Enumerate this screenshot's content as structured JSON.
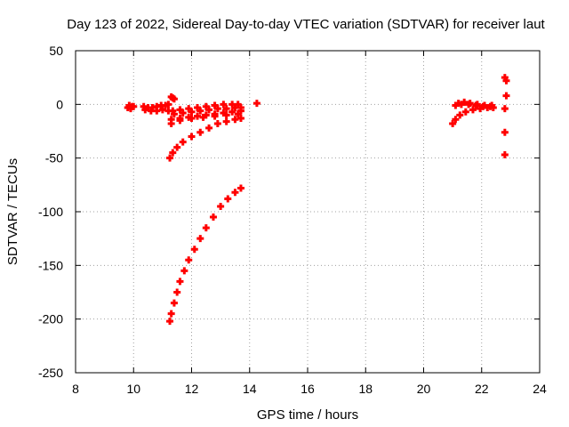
{
  "chart_data": {
    "type": "scatter",
    "title": "Day 123 of 2022, Sidereal Day-to-day VTEC variation (SDTVAR) for receiver laut",
    "xlabel": "GPS time / hours",
    "ylabel": "SDTVAR / TECUs",
    "xlim": [
      8,
      24
    ],
    "ylim": [
      -250,
      50
    ],
    "xticks": [
      8,
      10,
      12,
      14,
      16,
      18,
      20,
      22,
      24
    ],
    "yticks": [
      -250,
      -200,
      -150,
      -100,
      -50,
      0,
      50
    ],
    "grid": true,
    "marker_color": "#ff0000",
    "series": [
      {
        "values": [
          [
            9.8,
            -3
          ],
          [
            9.85,
            -1
          ],
          [
            9.9,
            -4
          ],
          [
            9.95,
            -2
          ],
          [
            10.0,
            -2
          ],
          [
            10.35,
            -2
          ],
          [
            10.5,
            -3
          ],
          [
            10.65,
            -3
          ],
          [
            10.8,
            -2
          ],
          [
            10.95,
            -1
          ],
          [
            11.1,
            -1
          ],
          [
            11.2,
            0
          ],
          [
            10.4,
            -5
          ],
          [
            10.6,
            -6
          ],
          [
            10.8,
            -6
          ],
          [
            11.0,
            -5
          ],
          [
            11.2,
            -6
          ],
          [
            11.35,
            -6
          ],
          [
            11.6,
            -5
          ],
          [
            11.9,
            -4
          ],
          [
            12.2,
            -3
          ],
          [
            12.5,
            -2
          ],
          [
            12.8,
            -1
          ],
          [
            13.1,
            0
          ],
          [
            13.4,
            0
          ],
          [
            13.6,
            0
          ],
          [
            11.4,
            -9
          ],
          [
            11.7,
            -8
          ],
          [
            12.0,
            -7
          ],
          [
            12.3,
            -6
          ],
          [
            12.6,
            -5
          ],
          [
            12.9,
            -4
          ],
          [
            13.2,
            -4
          ],
          [
            13.5,
            -3
          ],
          [
            13.7,
            -3
          ],
          [
            11.3,
            -14
          ],
          [
            11.6,
            -13
          ],
          [
            11.9,
            -12
          ],
          [
            12.2,
            -11
          ],
          [
            12.5,
            -10
          ],
          [
            12.8,
            -9
          ],
          [
            13.1,
            -8
          ],
          [
            13.4,
            -7
          ],
          [
            13.7,
            -6
          ],
          [
            11.3,
            -18
          ],
          [
            11.6,
            -15
          ],
          [
            12.0,
            -13
          ],
          [
            12.4,
            -12
          ],
          [
            12.8,
            -11
          ],
          [
            13.2,
            -10
          ],
          [
            13.6,
            -9
          ],
          [
            11.3,
            7
          ],
          [
            11.35,
            6
          ],
          [
            11.4,
            5
          ],
          [
            11.25,
            -50
          ],
          [
            11.35,
            -45
          ],
          [
            11.5,
            -40
          ],
          [
            11.7,
            -35
          ],
          [
            12.0,
            -30
          ],
          [
            12.3,
            -26
          ],
          [
            12.6,
            -22
          ],
          [
            12.9,
            -18
          ],
          [
            13.2,
            -16
          ],
          [
            13.5,
            -14
          ],
          [
            13.7,
            -13
          ],
          [
            11.25,
            -202
          ],
          [
            11.3,
            -195
          ],
          [
            11.4,
            -185
          ],
          [
            11.5,
            -175
          ],
          [
            11.6,
            -165
          ],
          [
            11.75,
            -155
          ],
          [
            11.9,
            -145
          ],
          [
            12.1,
            -135
          ],
          [
            12.3,
            -125
          ],
          [
            12.5,
            -115
          ],
          [
            12.75,
            -105
          ],
          [
            13.0,
            -95
          ],
          [
            13.25,
            -88
          ],
          [
            13.5,
            -82
          ],
          [
            13.7,
            -78
          ],
          [
            14.25,
            1
          ],
          [
            21.0,
            -18
          ],
          [
            21.1,
            -14
          ],
          [
            21.25,
            -10
          ],
          [
            21.45,
            -7
          ],
          [
            21.7,
            -5
          ],
          [
            21.95,
            -4
          ],
          [
            22.2,
            -3
          ],
          [
            22.4,
            -3
          ],
          [
            21.1,
            -1
          ],
          [
            21.3,
            0
          ],
          [
            21.55,
            0
          ],
          [
            21.8,
            -1
          ],
          [
            22.05,
            -2
          ],
          [
            22.3,
            -2
          ],
          [
            21.2,
            1
          ],
          [
            21.4,
            2
          ],
          [
            21.6,
            1
          ],
          [
            21.85,
            0
          ],
          [
            22.1,
            -1
          ],
          [
            22.35,
            -1
          ],
          [
            22.8,
            25
          ],
          [
            22.85,
            22
          ],
          [
            22.85,
            8
          ],
          [
            22.8,
            -4
          ],
          [
            22.8,
            -26
          ],
          [
            22.8,
            -47
          ]
        ]
      }
    ]
  }
}
